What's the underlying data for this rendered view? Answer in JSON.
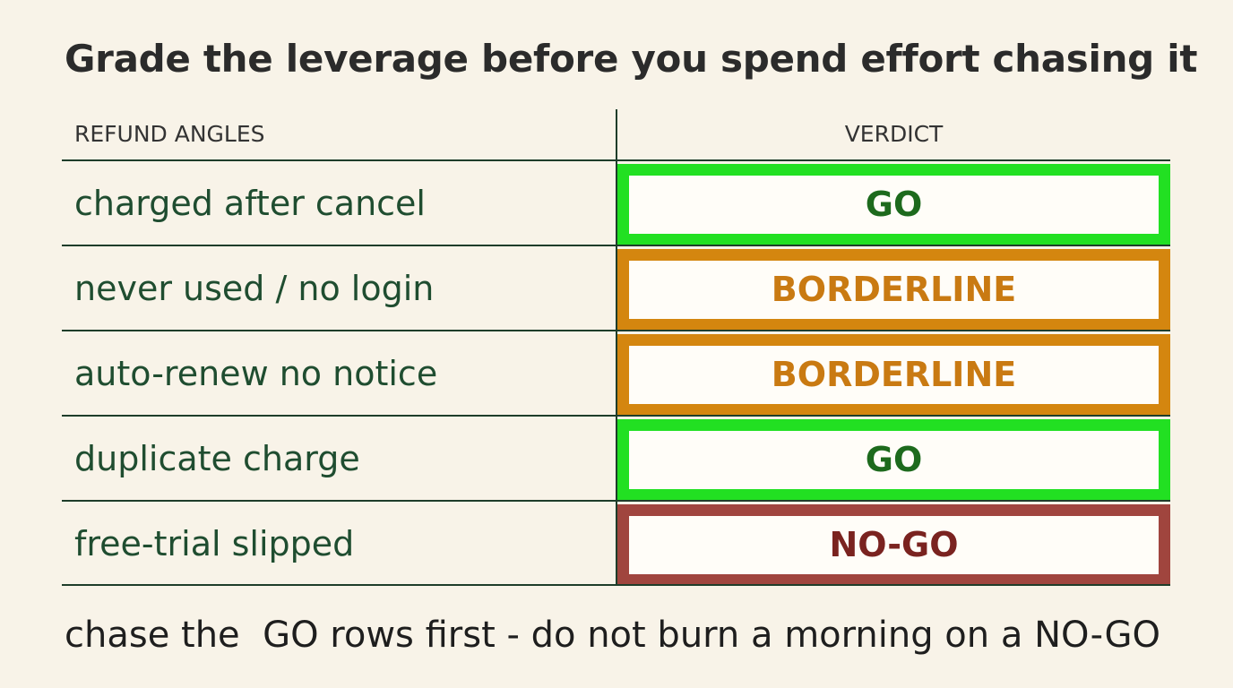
{
  "title": "Grade the leverage before you spend effort chasing it",
  "table": {
    "headers": {
      "angle": "REFUND ANGLES",
      "verdict": "VERDICT"
    },
    "rows": [
      {
        "angle": "charged after cancel",
        "verdict": "GO",
        "status": "go"
      },
      {
        "angle": "never used / no login",
        "verdict": "BORDERLINE",
        "status": "borderline"
      },
      {
        "angle": "auto-renew no notice",
        "verdict": "BORDERLINE",
        "status": "borderline"
      },
      {
        "angle": "duplicate charge",
        "verdict": "GO",
        "status": "go"
      },
      {
        "angle": "free-trial slipped",
        "verdict": "NO-GO",
        "status": "nogo"
      }
    ]
  },
  "colors": {
    "go_border": "#22e022",
    "go_text": "#1d6a1d",
    "borderline_border": "#d4860f",
    "borderline_text": "#c97a12",
    "nogo_border": "#a0453e",
    "nogo_text": "#7a2320"
  },
  "footer": "chase the  GO rows first - do not burn a morning on a NO-GO"
}
